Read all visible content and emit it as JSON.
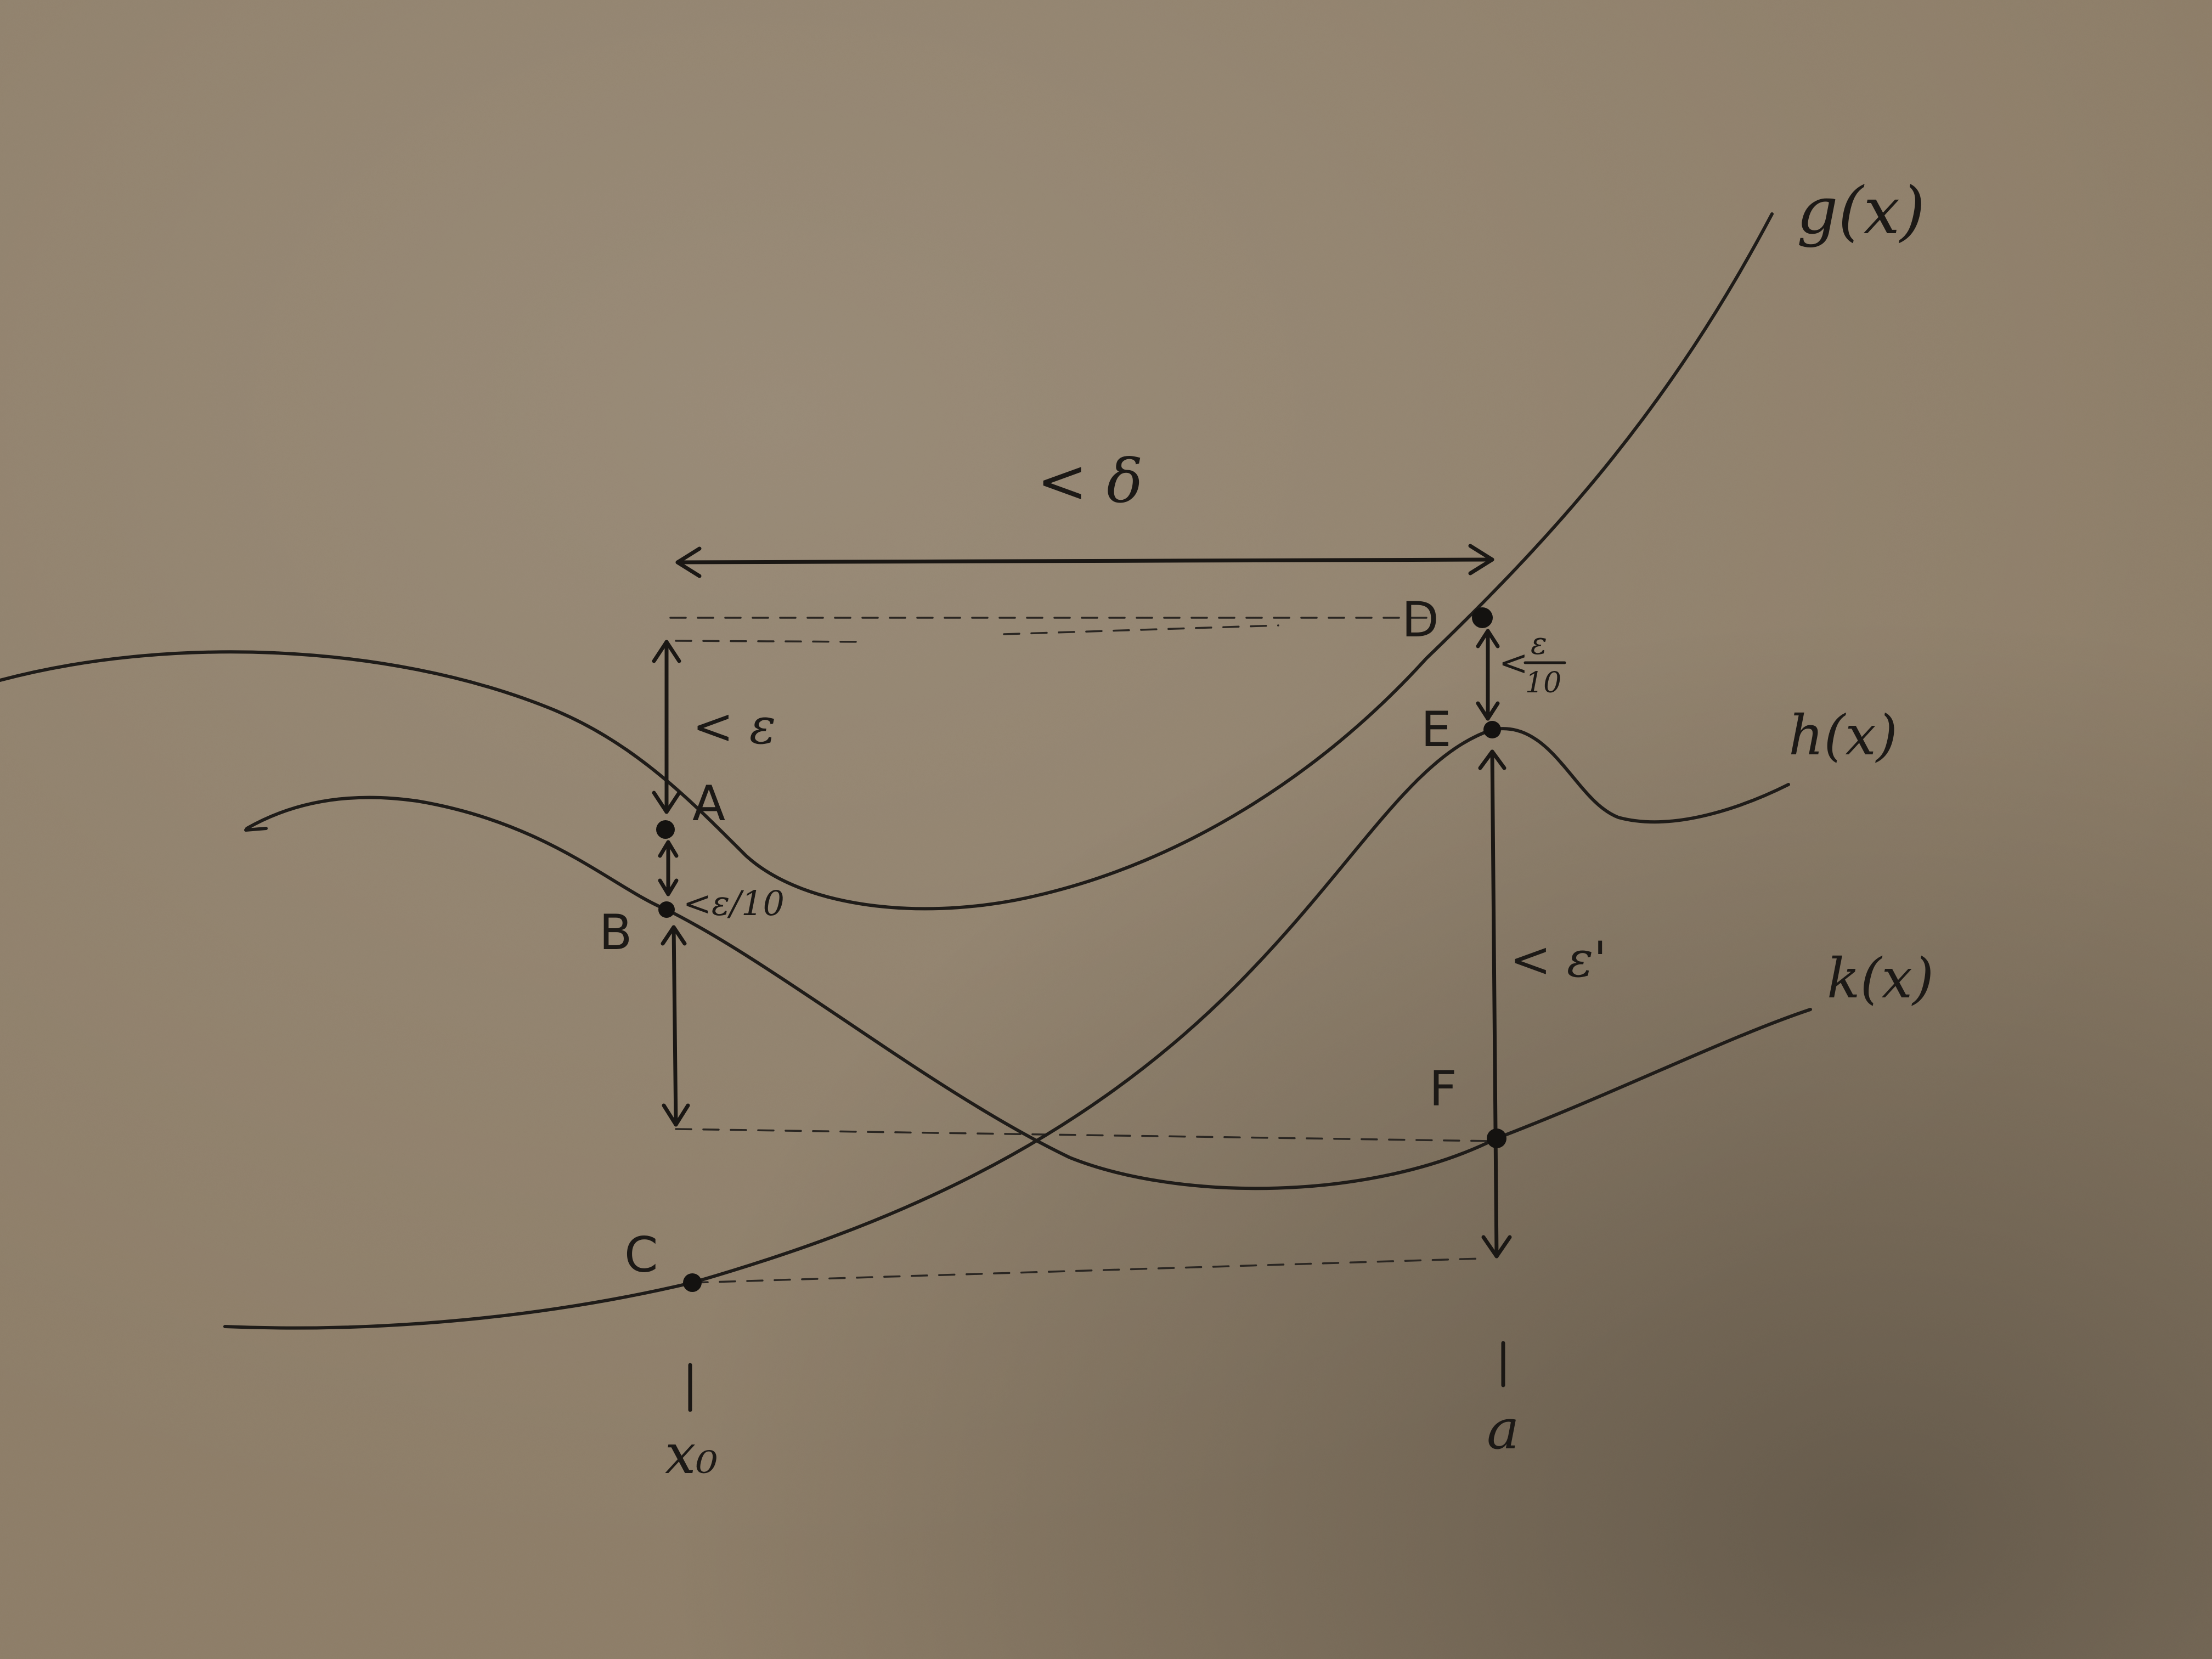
{
  "diagram": {
    "curve_labels": {
      "g": "g(x)",
      "h": "h(x)",
      "k": "k(x)"
    },
    "point_labels": {
      "A": "A",
      "B": "B",
      "C": "C",
      "D": "D",
      "E": "E",
      "F": "F"
    },
    "measure_labels": {
      "delta": "< δ",
      "eps_left": "< ε",
      "eps_over_10_left": "<ε/10",
      "eps_over_10_right_lt": "<",
      "eps_over_10_right_num": "ε",
      "eps_over_10_right_den": "10",
      "eps_prime": "< ε'"
    },
    "axis_labels": {
      "x0": "x₀",
      "a": "a"
    },
    "colors": {
      "paper": "#8c7c66",
      "ink": "#1a1714"
    }
  }
}
